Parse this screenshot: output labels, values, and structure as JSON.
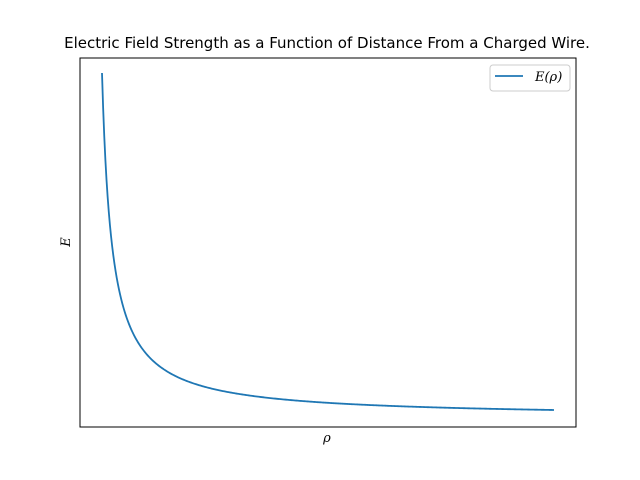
{
  "chart_data": {
    "type": "line",
    "title": "Electric Field Strength as a Function of Distance From a Charged Wire.",
    "xlabel": "ρ",
    "ylabel": "E",
    "xticks": [],
    "yticks": [],
    "grid": false,
    "legend": {
      "placement": "top-right",
      "entries": [
        "E(ρ)"
      ]
    },
    "series": [
      {
        "name": "E(ρ)",
        "color": "#1f77b4",
        "function": "k / rho",
        "x_domain": [
          1,
          46
        ],
        "points": [
          {
            "x": 1,
            "y": 100
          },
          {
            "x": 2,
            "y": 50
          },
          {
            "x": 3,
            "y": 33.3
          },
          {
            "x": 5,
            "y": 20
          },
          {
            "x": 10,
            "y": 10
          },
          {
            "x": 20,
            "y": 5
          },
          {
            "x": 46,
            "y": 2.17
          }
        ]
      }
    ]
  },
  "colors": {
    "series": "#1f77b4",
    "axes": "#000000",
    "background": "#ffffff"
  }
}
